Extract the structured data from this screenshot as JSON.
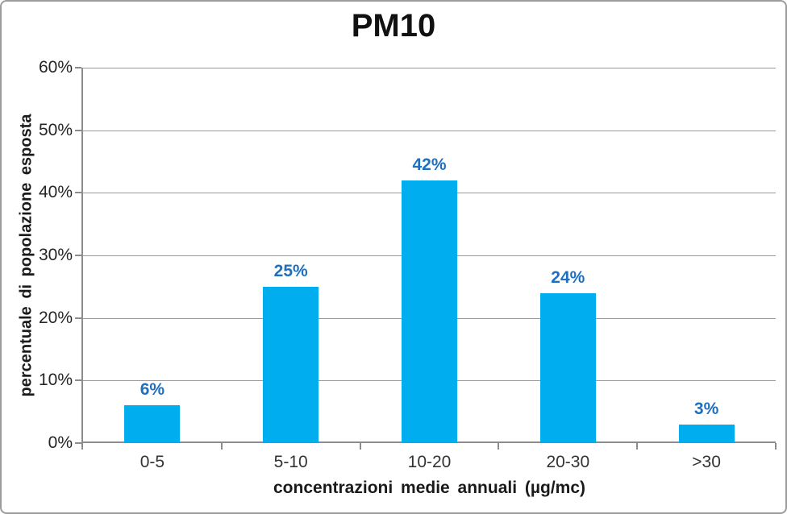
{
  "chart_data": {
    "type": "bar",
    "title": "PM10",
    "categories": [
      "0-5",
      "5-10",
      "10-20",
      "20-30",
      ">30"
    ],
    "values": [
      6,
      25,
      42,
      24,
      3
    ],
    "data_labels": [
      "6%",
      "25%",
      "42%",
      "24%",
      "3%"
    ],
    "xlabel": "concentrazioni medie annuali (µg/mc)",
    "ylabel": "percentuale di popolazione esposta",
    "ylim": [
      0,
      60
    ],
    "ytick_step": 10,
    "ytick_labels": [
      "0%",
      "10%",
      "20%",
      "30%",
      "40%",
      "50%",
      "60%"
    ],
    "grid": "horizontal",
    "legend": "none",
    "colors": {
      "bar_fill": "#00AEEF",
      "data_label": "#1F6FC0",
      "axis": "#8C8C8C",
      "gridline": "#999999",
      "frame_border": "#9C9C9C",
      "text": "#262626"
    }
  }
}
